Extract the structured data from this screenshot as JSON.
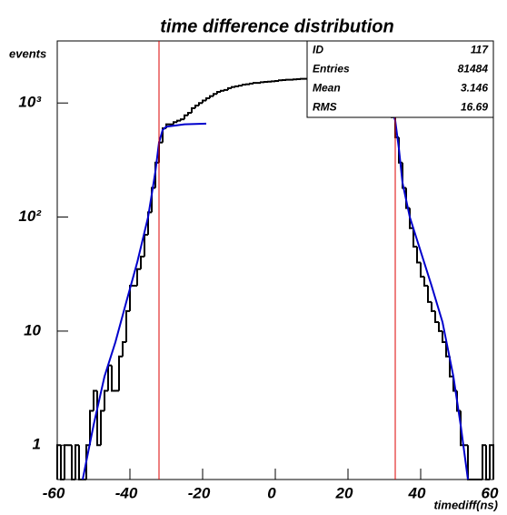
{
  "chart_data": {
    "type": "histogram",
    "title": "time difference distribution",
    "ylabel": "events",
    "xlabel": "timediff(ns)",
    "color": "#000000",
    "log_y": true,
    "xlim": [
      -60,
      60
    ],
    "ylim": [
      0.5,
      3500
    ],
    "xticks": [
      -60,
      -40,
      -20,
      0,
      20,
      40,
      60
    ],
    "yticks": [
      1,
      10,
      {
        "value": 100,
        "label": "10²"
      },
      {
        "value": 1000,
        "label": "10³"
      }
    ],
    "bins": [
      -60,
      -59,
      -58,
      -57,
      -56,
      -55,
      -54,
      -53,
      -52,
      -51,
      -50,
      -49,
      -48,
      -47,
      -46,
      -45,
      -44,
      -43,
      -42,
      -41,
      -40,
      -39,
      -38,
      -37,
      -36,
      -35,
      -34,
      -33,
      -32,
      -31,
      -30,
      -29,
      -28,
      -27,
      -26,
      -25,
      -24,
      -23,
      -22,
      -21,
      -20,
      -19,
      -18,
      -17,
      -16,
      -15,
      -14,
      -13,
      -12,
      -11,
      -10,
      -9,
      -8,
      -7,
      -6,
      -5,
      -4,
      -3,
      -2,
      -1,
      0,
      1,
      2,
      3,
      4,
      5,
      6,
      7,
      8,
      9,
      10,
      11,
      12,
      13,
      14,
      15,
      16,
      17,
      18,
      19,
      20,
      21,
      22,
      23,
      24,
      25,
      26,
      27,
      28,
      29,
      30,
      31,
      32,
      33,
      34,
      35,
      36,
      37,
      38,
      39,
      40,
      41,
      42,
      43,
      44,
      45,
      46,
      47,
      48,
      49,
      50,
      51,
      52,
      53,
      54,
      55,
      56,
      57,
      58,
      59,
      60
    ],
    "values": [
      1,
      0,
      1,
      1,
      0,
      1,
      0,
      0,
      1,
      2,
      3,
      1,
      2,
      3,
      5,
      3,
      3,
      6,
      8,
      15,
      25,
      25,
      35,
      45,
      70,
      110,
      180,
      300,
      450,
      600,
      650,
      650,
      680,
      700,
      720,
      780,
      820,
      900,
      950,
      1000,
      1050,
      1100,
      1150,
      1200,
      1250,
      1280,
      1300,
      1350,
      1380,
      1400,
      1420,
      1450,
      1460,
      1480,
      1500,
      1500,
      1520,
      1530,
      1540,
      1550,
      1560,
      1580,
      1590,
      1600,
      1600,
      1610,
      1620,
      1630,
      1630,
      1620,
      1630,
      1620,
      1600,
      1580,
      1560,
      1540,
      1500,
      1480,
      1450,
      1400,
      1350,
      1320,
      1280,
      1250,
      1200,
      1150,
      1100,
      1050,
      1000,
      980,
      950,
      900,
      750,
      500,
      300,
      180,
      120,
      80,
      55,
      40,
      30,
      25,
      18,
      15,
      12,
      10,
      8,
      6,
      4,
      3,
      2,
      1,
      1,
      0,
      0,
      0,
      0,
      1,
      0,
      1
    ],
    "fits": [
      {
        "color": "#0000cc",
        "x": [
          -53,
          -50,
          -47,
          -44,
          -41,
          -38,
          -35,
          -33,
          -32,
          -31,
          -30,
          -25,
          -19
        ],
        "y": [
          0.5,
          1.5,
          4,
          8,
          18,
          40,
          100,
          250,
          450,
          580,
          620,
          650,
          660
        ]
      },
      {
        "color": "#0000cc",
        "x": [
          20,
          28,
          31,
          32,
          33,
          34,
          35,
          37,
          40,
          43,
          46,
          49,
          51,
          53
        ],
        "y": [
          1050,
          1020,
          980,
          900,
          700,
          400,
          200,
          100,
          50,
          25,
          12,
          4,
          1.5,
          0.5
        ]
      }
    ],
    "vlines": {
      "color": "#dd0000",
      "x": [
        -32,
        33
      ]
    },
    "stats": {
      "labels": [
        "ID",
        "Entries",
        "Mean",
        "RMS"
      ],
      "values": [
        117,
        81484,
        3.146,
        16.69
      ]
    }
  }
}
